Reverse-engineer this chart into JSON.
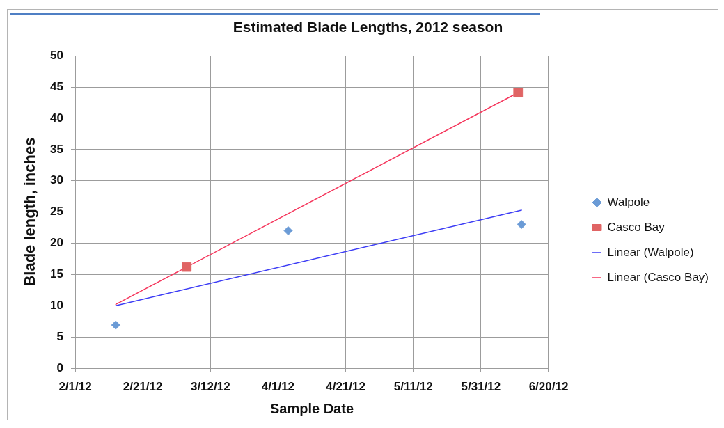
{
  "chart_data": {
    "type": "scatter",
    "title": "Estimated Blade Lengths, 2012 season",
    "xlabel": "Sample Date",
    "ylabel": "Blade length, inches",
    "xlim": [
      "2012-02-01",
      "2012-06-20"
    ],
    "xticks": [
      {
        "value": "2012-02-01",
        "label": "2/1/12"
      },
      {
        "value": "2012-02-21",
        "label": "2/21/12"
      },
      {
        "value": "2012-03-12",
        "label": "3/12/12"
      },
      {
        "value": "2012-04-01",
        "label": "4/1/12"
      },
      {
        "value": "2012-04-21",
        "label": "4/21/12"
      },
      {
        "value": "2012-05-11",
        "label": "5/11/12"
      },
      {
        "value": "2012-05-31",
        "label": "5/31/12"
      },
      {
        "value": "2012-06-20",
        "label": "6/20/12"
      }
    ],
    "ylim": [
      0,
      50
    ],
    "yticks": [
      0,
      5,
      10,
      15,
      20,
      25,
      30,
      35,
      40,
      45,
      50
    ],
    "grid": true,
    "legend": "right",
    "series": [
      {
        "name": "Walpole",
        "marker": "diamond",
        "color": "#6b9bd6",
        "x": [
          "2012-02-13",
          "2012-04-04",
          "2012-06-12"
        ],
        "values": [
          6.9,
          22,
          23
        ]
      },
      {
        "name": "Casco Bay",
        "marker": "square",
        "color": "#e06464",
        "x": [
          "2012-03-05",
          "2012-06-11"
        ],
        "values": [
          16.2,
          44.1
        ]
      },
      {
        "name": "Linear (Walpole)",
        "type": "line",
        "marker": "none",
        "color": "#3c3cf5",
        "x": [
          "2012-02-13",
          "2012-06-12"
        ],
        "values": [
          10,
          25.3
        ]
      },
      {
        "name": "Linear (Casco Bay)",
        "type": "line",
        "marker": "none",
        "color": "#f5365c",
        "x": [
          "2012-02-13",
          "2012-06-12"
        ],
        "values": [
          10.2,
          44.4
        ]
      }
    ]
  }
}
